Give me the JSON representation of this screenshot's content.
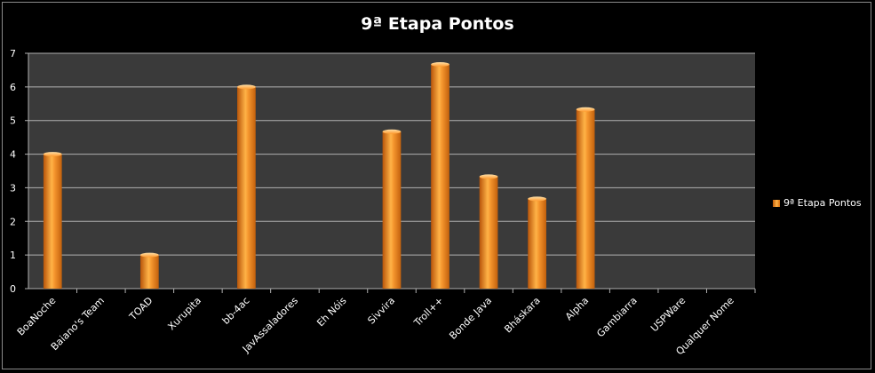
{
  "chart_data": {
    "type": "bar",
    "title": "9ª Etapa Pontos",
    "categories": [
      "BoaNoche",
      "Baiano's Team",
      "TOAD",
      "Xurupita",
      "bb-4ac",
      "JavAssaladores",
      "Eh Nóis",
      "Sivvira",
      "Troll++",
      "Bonde Java",
      "Bháskara",
      "Alpha",
      "Gambiarra",
      "USPWare",
      "Qualquer Nome"
    ],
    "series": [
      {
        "name": "9ª Etapa Pontos",
        "values": [
          4,
          0,
          1,
          0,
          6,
          0,
          0,
          4.67,
          6.67,
          3.33,
          2.67,
          5.33,
          0,
          0,
          0
        ]
      }
    ],
    "ylim": [
      0,
      7
    ],
    "yticks": [
      "0",
      "1",
      "2",
      "3",
      "4",
      "5",
      "6",
      "7"
    ],
    "grid": true,
    "legend_position": "right",
    "colors": {
      "bar": "#f28a1e",
      "bar_light": "#ffc266",
      "bar_dark": "#b8550a",
      "plot_bg": "#3a3a3a",
      "grid": "#b0b0b0",
      "text": "#ffffff",
      "background": "#000000"
    }
  }
}
